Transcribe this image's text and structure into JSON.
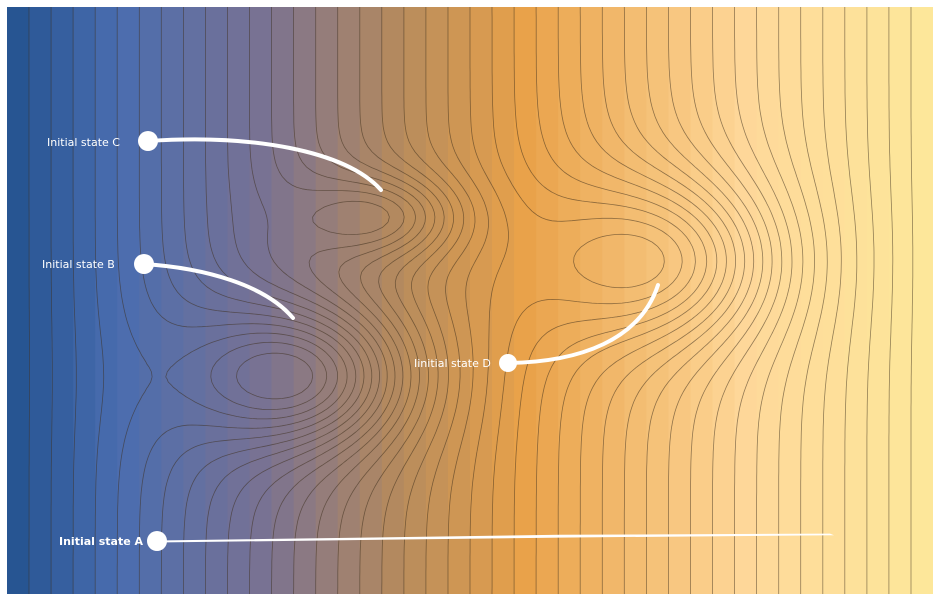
{
  "colors": {
    "field_low": "#23528f",
    "field_mid_blue": "#4a6db0",
    "field_violet": "#7a7292",
    "field_brown": "#b48a5e",
    "field_orange": "#e9a24a",
    "field_light": "#fed89a",
    "field_high": "#fde89a",
    "contour_line": "#3d2d1c",
    "trajectory": "#ffffff"
  },
  "states": [
    {
      "id": "C",
      "label": "Initial state C"
    },
    {
      "id": "B",
      "label": "Initial state B"
    },
    {
      "id": "D",
      "label": "Iinitial state D"
    },
    {
      "id": "A",
      "label": "Initial state A"
    }
  ]
}
